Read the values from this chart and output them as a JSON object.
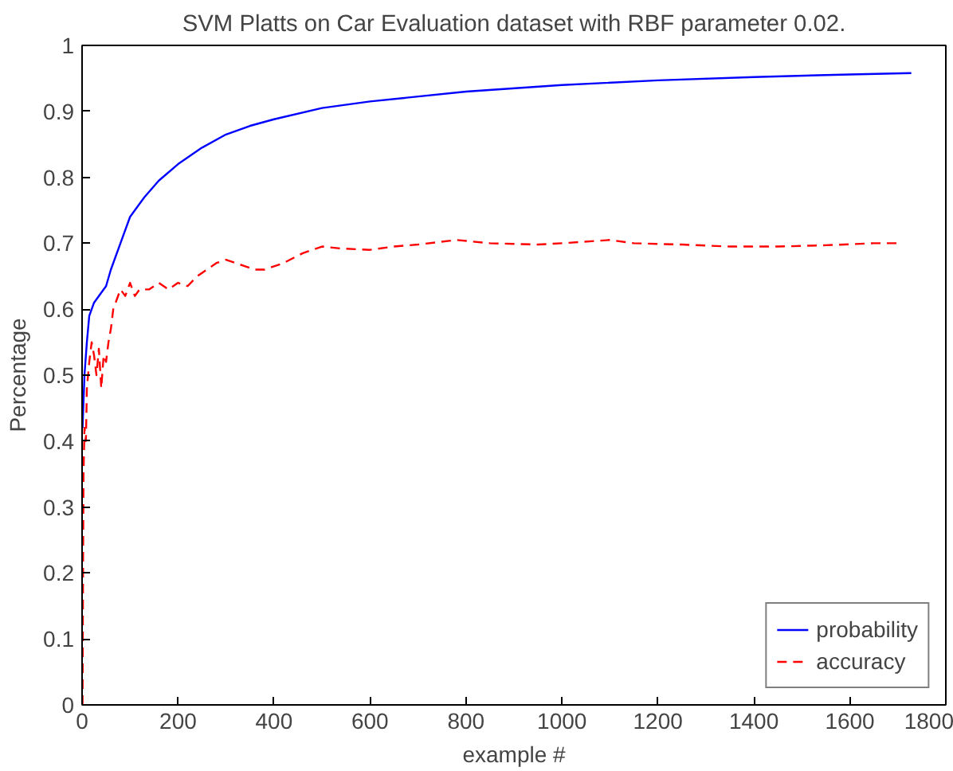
{
  "chart_data": {
    "type": "line",
    "title": "SVM Platts on Car Evaluation dataset with RBF parameter 0.02.",
    "xlabel": "example #",
    "ylabel": "Percentage",
    "xlim": [
      0,
      1800
    ],
    "ylim": [
      0,
      1
    ],
    "xticks": [
      0,
      200,
      400,
      600,
      800,
      1000,
      1200,
      1400,
      1600,
      1800
    ],
    "yticks": [
      0,
      {
        "value": 0.1,
        "label": "0.1"
      },
      {
        "value": 0.2,
        "label": "0.2"
      },
      {
        "value": 0.3,
        "label": "0.3"
      },
      {
        "value": 0.4,
        "label": "0.4"
      },
      {
        "value": 0.5,
        "label": "0.5"
      },
      {
        "value": 0.6,
        "label": "0.6"
      },
      {
        "value": 0.7,
        "label": "0.7"
      },
      {
        "value": 0.8,
        "label": "0.8"
      },
      {
        "value": 0.9,
        "label": "0.9"
      },
      1
    ],
    "grid": false,
    "legend": "bottom right",
    "marker": "none",
    "series": [
      {
        "name": "probability",
        "color": "#0000ff",
        "line_style": "solid",
        "x": [
          1,
          5,
          10,
          15,
          25,
          40,
          50,
          60,
          80,
          100,
          130,
          160,
          200,
          250,
          300,
          350,
          400,
          500,
          600,
          800,
          1000,
          1200,
          1400,
          1600,
          1728
        ],
        "values": [
          0.42,
          0.5,
          0.55,
          0.59,
          0.61,
          0.625,
          0.635,
          0.66,
          0.7,
          0.74,
          0.77,
          0.795,
          0.82,
          0.845,
          0.865,
          0.878,
          0.888,
          0.905,
          0.915,
          0.93,
          0.94,
          0.947,
          0.952,
          0.956,
          0.958
        ]
      },
      {
        "name": "accuracy",
        "color": "#ff0000",
        "line_style": "dashed",
        "x": [
          1,
          2,
          3,
          5,
          8,
          10,
          15,
          20,
          25,
          30,
          35,
          40,
          45,
          50,
          55,
          60,
          65,
          70,
          80,
          90,
          100,
          110,
          120,
          140,
          160,
          180,
          200,
          220,
          240,
          260,
          280,
          300,
          320,
          340,
          360,
          380,
          420,
          460,
          500,
          540,
          600,
          650,
          700,
          780,
          850,
          950,
          1000,
          1100,
          1150,
          1250,
          1350,
          1450,
          1550,
          1650,
          1700
        ],
        "values": [
          0.0,
          0.2,
          0.35,
          0.42,
          0.4,
          0.48,
          0.52,
          0.55,
          0.53,
          0.5,
          0.54,
          0.48,
          0.53,
          0.52,
          0.55,
          0.57,
          0.6,
          0.61,
          0.63,
          0.62,
          0.64,
          0.62,
          0.63,
          0.63,
          0.64,
          0.63,
          0.64,
          0.635,
          0.65,
          0.66,
          0.67,
          0.675,
          0.67,
          0.665,
          0.66,
          0.66,
          0.67,
          0.685,
          0.695,
          0.692,
          0.69,
          0.695,
          0.698,
          0.705,
          0.7,
          0.698,
          0.7,
          0.705,
          0.7,
          0.698,
          0.695,
          0.695,
          0.697,
          0.7,
          0.7
        ]
      }
    ]
  }
}
